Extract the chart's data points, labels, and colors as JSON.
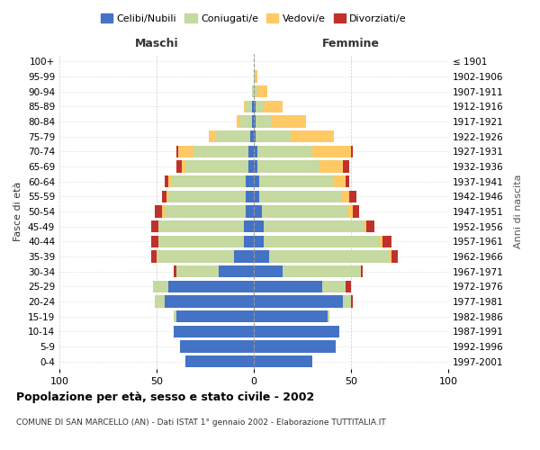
{
  "age_groups": [
    "0-4",
    "5-9",
    "10-14",
    "15-19",
    "20-24",
    "25-29",
    "30-34",
    "35-39",
    "40-44",
    "45-49",
    "50-54",
    "55-59",
    "60-64",
    "65-69",
    "70-74",
    "75-79",
    "80-84",
    "85-89",
    "90-94",
    "95-99",
    "100+"
  ],
  "birth_years": [
    "1997-2001",
    "1992-1996",
    "1987-1991",
    "1982-1986",
    "1977-1981",
    "1972-1976",
    "1967-1971",
    "1962-1966",
    "1957-1961",
    "1952-1956",
    "1947-1951",
    "1942-1946",
    "1937-1941",
    "1932-1936",
    "1927-1931",
    "1922-1926",
    "1917-1921",
    "1912-1916",
    "1907-1911",
    "1902-1906",
    "≤ 1901"
  ],
  "males": {
    "celibi": [
      35,
      38,
      41,
      40,
      46,
      44,
      18,
      10,
      5,
      5,
      4,
      4,
      4,
      3,
      3,
      2,
      1,
      1,
      0,
      0,
      0
    ],
    "coniugati": [
      0,
      0,
      0,
      1,
      5,
      8,
      22,
      40,
      44,
      44,
      42,
      40,
      38,
      32,
      28,
      18,
      6,
      3,
      1,
      0,
      0
    ],
    "vedovi": [
      0,
      0,
      0,
      0,
      0,
      0,
      0,
      0,
      0,
      0,
      1,
      1,
      2,
      2,
      8,
      3,
      2,
      1,
      0,
      0,
      0
    ],
    "divorziati": [
      0,
      0,
      0,
      0,
      0,
      0,
      1,
      3,
      4,
      4,
      4,
      2,
      2,
      3,
      1,
      0,
      0,
      0,
      0,
      0,
      0
    ]
  },
  "females": {
    "nubili": [
      30,
      42,
      44,
      38,
      46,
      35,
      15,
      8,
      5,
      5,
      4,
      3,
      3,
      2,
      2,
      1,
      1,
      1,
      0,
      0,
      0
    ],
    "coniugate": [
      0,
      0,
      0,
      1,
      4,
      12,
      40,
      62,
      60,
      52,
      44,
      42,
      38,
      32,
      28,
      18,
      8,
      4,
      2,
      1,
      0
    ],
    "vedove": [
      0,
      0,
      0,
      0,
      0,
      0,
      0,
      1,
      1,
      1,
      3,
      4,
      6,
      12,
      20,
      22,
      18,
      10,
      5,
      1,
      0
    ],
    "divorziate": [
      0,
      0,
      0,
      0,
      1,
      3,
      1,
      3,
      5,
      4,
      3,
      4,
      2,
      3,
      1,
      0,
      0,
      0,
      0,
      0,
      0
    ]
  },
  "colors": {
    "celibi": "#4472c4",
    "coniugati": "#c5d9a0",
    "vedovi": "#ffc966",
    "divorziati": "#c0312b"
  },
  "xlim": 100,
  "title": "Popolazione per età, sesso e stato civile - 2002",
  "subtitle": "COMUNE DI SAN MARCELLO (AN) - Dati ISTAT 1° gennaio 2002 - Elaborazione TUTTITALIA.IT",
  "ylabel_left": "Fasce di età",
  "ylabel_right": "Anni di nascita",
  "xlabel_left": "Maschi",
  "xlabel_right": "Femmine",
  "legend_labels": [
    "Celibi/Nubili",
    "Coniugati/e",
    "Vedovi/e",
    "Divorziati/e"
  ],
  "background_color": "#ffffff",
  "grid_color": "#cccccc"
}
